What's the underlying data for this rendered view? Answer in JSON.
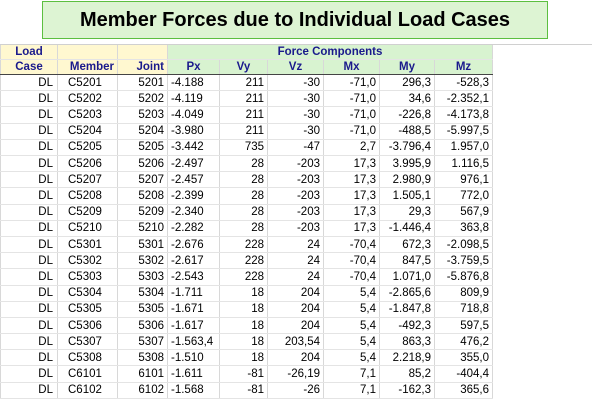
{
  "title": "Member Forces due to Individual Load Cases",
  "headers": {
    "load_top": "Load",
    "case": "Case",
    "member": "Member",
    "joint": "Joint",
    "force_components": "Force Components",
    "px": "Px",
    "vy": "Vy",
    "vz": "Vz",
    "mx": "Mx",
    "my": "My",
    "mz": "Mz"
  },
  "rows": [
    {
      "case": "DL",
      "member": "C5201",
      "joint": "5201",
      "px": "-4.188",
      "vy": "211",
      "vz": "-30",
      "mx": "-71,0",
      "my": "296,3",
      "mz": "-528,3"
    },
    {
      "case": "DL",
      "member": "C5202",
      "joint": "5202",
      "px": "-4.119",
      "vy": "211",
      "vz": "-30",
      "mx": "-71,0",
      "my": "34,6",
      "mz": "-2.352,1"
    },
    {
      "case": "DL",
      "member": "C5203",
      "joint": "5203",
      "px": "-4.049",
      "vy": "211",
      "vz": "-30",
      "mx": "-71,0",
      "my": "-226,8",
      "mz": "-4.173,8"
    },
    {
      "case": "DL",
      "member": "C5204",
      "joint": "5204",
      "px": "-3.980",
      "vy": "211",
      "vz": "-30",
      "mx": "-71,0",
      "my": "-488,5",
      "mz": "-5.997,5"
    },
    {
      "case": "DL",
      "member": "C5205",
      "joint": "5205",
      "px": "-3.442",
      "vy": "735",
      "vz": "-47",
      "mx": "2,7",
      "my": "-3.796,4",
      "mz": "1.957,0"
    },
    {
      "case": "DL",
      "member": "C5206",
      "joint": "5206",
      "px": "-2.497",
      "vy": "28",
      "vz": "-203",
      "mx": "17,3",
      "my": "3.995,9",
      "mz": "1.116,5"
    },
    {
      "case": "DL",
      "member": "C5207",
      "joint": "5207",
      "px": "-2.457",
      "vy": "28",
      "vz": "-203",
      "mx": "17,3",
      "my": "2.980,9",
      "mz": "976,1"
    },
    {
      "case": "DL",
      "member": "C5208",
      "joint": "5208",
      "px": "-2.399",
      "vy": "28",
      "vz": "-203",
      "mx": "17,3",
      "my": "1.505,1",
      "mz": "772,0"
    },
    {
      "case": "DL",
      "member": "C5209",
      "joint": "5209",
      "px": "-2.340",
      "vy": "28",
      "vz": "-203",
      "mx": "17,3",
      "my": "29,3",
      "mz": "567,9"
    },
    {
      "case": "DL",
      "member": "C5210",
      "joint": "5210",
      "px": "-2.282",
      "vy": "28",
      "vz": "-203",
      "mx": "17,3",
      "my": "-1.446,4",
      "mz": "363,8"
    },
    {
      "case": "DL",
      "member": "C5301",
      "joint": "5301",
      "px": "-2.676",
      "vy": "228",
      "vz": "24",
      "mx": "-70,4",
      "my": "672,3",
      "mz": "-2.098,5"
    },
    {
      "case": "DL",
      "member": "C5302",
      "joint": "5302",
      "px": "-2.617",
      "vy": "228",
      "vz": "24",
      "mx": "-70,4",
      "my": "847,5",
      "mz": "-3.759,5"
    },
    {
      "case": "DL",
      "member": "C5303",
      "joint": "5303",
      "px": "-2.543",
      "vy": "228",
      "vz": "24",
      "mx": "-70,4",
      "my": "1.071,0",
      "mz": "-5.876,8"
    },
    {
      "case": "DL",
      "member": "C5304",
      "joint": "5304",
      "px": "-1.711",
      "vy": "18",
      "vz": "204",
      "mx": "5,4",
      "my": "-2.865,6",
      "mz": "809,9"
    },
    {
      "case": "DL",
      "member": "C5305",
      "joint": "5305",
      "px": "-1.671",
      "vy": "18",
      "vz": "204",
      "mx": "5,4",
      "my": "-1.847,8",
      "mz": "718,8"
    },
    {
      "case": "DL",
      "member": "C5306",
      "joint": "5306",
      "px": "-1.617",
      "vy": "18",
      "vz": "204",
      "mx": "5,4",
      "my": "-492,3",
      "mz": "597,5"
    },
    {
      "case": "DL",
      "member": "C5307",
      "joint": "5307",
      "px": "-1.563,4",
      "vy": "18",
      "vz": "203,54",
      "mx": "5,4",
      "my": "863,3",
      "mz": "476,2"
    },
    {
      "case": "DL",
      "member": "C5308",
      "joint": "5308",
      "px": "-1.510",
      "vy": "18",
      "vz": "204",
      "mx": "5,4",
      "my": "2.218,9",
      "mz": "355,0"
    },
    {
      "case": "DL",
      "member": "C6101",
      "joint": "6101",
      "px": "-1.611",
      "vy": "-81",
      "vz": "-26,19",
      "mx": "7,1",
      "my": "85,2",
      "mz": "-404,4"
    },
    {
      "case": "DL",
      "member": "C6102",
      "joint": "6102",
      "px": "-1.568",
      "vy": "-81",
      "vz": "-26",
      "mx": "7,1",
      "my": "-162,3",
      "mz": "365,6"
    }
  ]
}
